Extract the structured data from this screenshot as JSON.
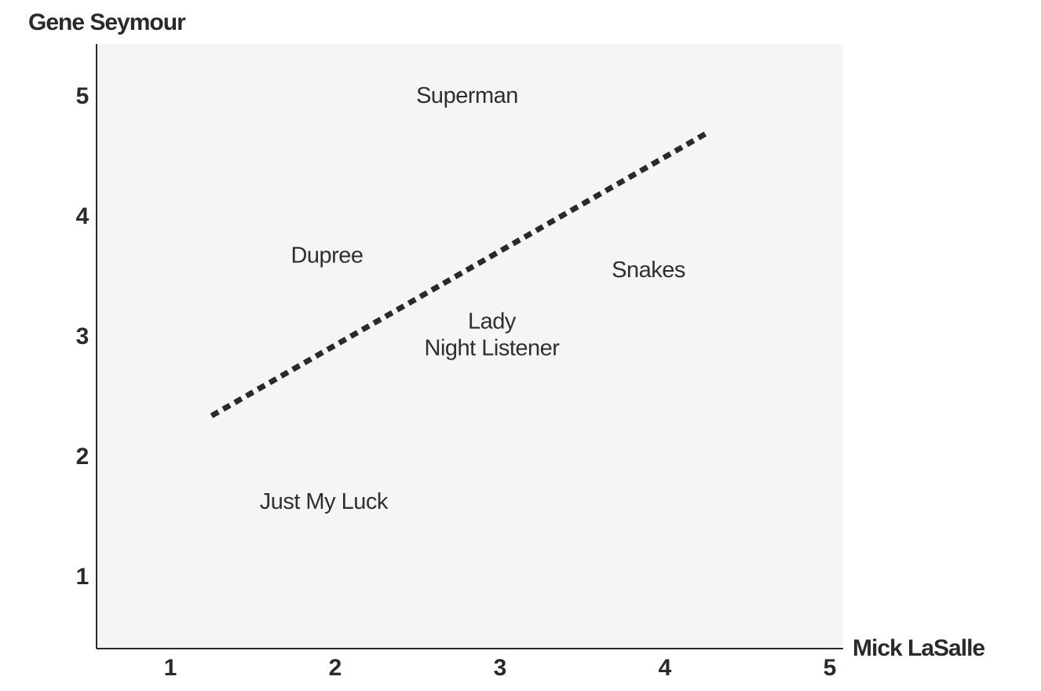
{
  "chart_data": {
    "type": "scatter",
    "xlabel": "Mick LaSalle",
    "ylabel": "Gene Seymour",
    "xlim": [
      0.5,
      5.0
    ],
    "ylim": [
      0.4,
      5.5
    ],
    "x_ticks": [
      1,
      2,
      3,
      4,
      5
    ],
    "y_ticks": [
      1,
      2,
      3,
      4,
      5
    ],
    "grid": false,
    "points": [
      {
        "label": "Superman",
        "x": 2.8,
        "y": 5.0
      },
      {
        "label": "Dupree",
        "x": 1.95,
        "y": 3.67
      },
      {
        "label": "Snakes",
        "x": 3.9,
        "y": 3.55
      },
      {
        "label": "Lady",
        "x": 2.95,
        "y": 3.12
      },
      {
        "label": "Night Listener",
        "x": 2.95,
        "y": 2.9
      },
      {
        "label": "Just My Luck",
        "x": 1.93,
        "y": 1.62
      }
    ],
    "trend_line": {
      "style": "dotted",
      "x": [
        1.25,
        4.25
      ],
      "y": [
        2.33,
        4.68
      ]
    }
  }
}
